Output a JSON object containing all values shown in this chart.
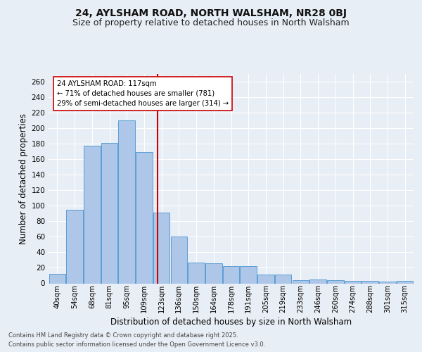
{
  "title1": "24, AYLSHAM ROAD, NORTH WALSHAM, NR28 0BJ",
  "title2": "Size of property relative to detached houses in North Walsham",
  "xlabel": "Distribution of detached houses by size in North Walsham",
  "ylabel": "Number of detached properties",
  "bins": [
    "40sqm",
    "54sqm",
    "68sqm",
    "81sqm",
    "95sqm",
    "109sqm",
    "123sqm",
    "136sqm",
    "150sqm",
    "164sqm",
    "178sqm",
    "191sqm",
    "205sqm",
    "219sqm",
    "233sqm",
    "246sqm",
    "260sqm",
    "274sqm",
    "288sqm",
    "301sqm",
    "315sqm"
  ],
  "values": [
    12,
    95,
    177,
    181,
    210,
    169,
    91,
    60,
    27,
    26,
    22,
    22,
    11,
    11,
    4,
    5,
    4,
    3,
    3,
    2,
    3
  ],
  "bar_color": "#aec6e8",
  "bar_edge_color": "#5a9fd4",
  "vline_x": 5.77,
  "vline_color": "#cc0000",
  "annotation_text": "24 AYLSHAM ROAD: 117sqm\n← 71% of detached houses are smaller (781)\n29% of semi-detached houses are larger (314) →",
  "annotation_box_color": "#ffffff",
  "annotation_box_edge": "#cc0000",
  "ylim": [
    0,
    270
  ],
  "yticks": [
    0,
    20,
    40,
    60,
    80,
    100,
    120,
    140,
    160,
    180,
    200,
    220,
    240,
    260
  ],
  "bg_color": "#e8eef5",
  "plot_bg": "#e8eef5",
  "footer1": "Contains HM Land Registry data © Crown copyright and database right 2025.",
  "footer2": "Contains public sector information licensed under the Open Government Licence v3.0.",
  "title1_fontsize": 10,
  "title2_fontsize": 9,
  "xlabel_fontsize": 8.5,
  "ylabel_fontsize": 8.5
}
